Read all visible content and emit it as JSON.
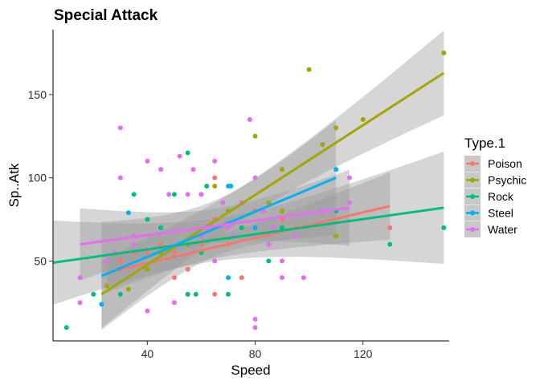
{
  "chart_data": {
    "type": "scatter",
    "title": "Special Attack",
    "xlabel": "Speed",
    "ylabel": "Sp..Atk",
    "xlim": [
      5,
      152
    ],
    "ylim": [
      2,
      189
    ],
    "xticks": [
      40,
      80,
      120
    ],
    "yticks": [
      50,
      100,
      150
    ],
    "grid": false,
    "legend": {
      "title": "Type.1",
      "position": "right"
    },
    "smoothing": "linear model with 95% confidence band",
    "series": [
      {
        "name": "Poison",
        "color": "#F8766D",
        "points": [
          [
            25,
            35
          ],
          [
            30,
            50
          ],
          [
            30,
            45
          ],
          [
            35,
            55
          ],
          [
            40,
            45
          ],
          [
            40,
            55
          ],
          [
            45,
            60
          ],
          [
            50,
            40
          ],
          [
            50,
            55
          ],
          [
            55,
            30
          ],
          [
            55,
            45
          ],
          [
            60,
            60
          ],
          [
            60,
            55
          ],
          [
            65,
            30
          ],
          [
            65,
            100
          ],
          [
            65,
            75
          ],
          [
            70,
            60
          ],
          [
            75,
            40
          ],
          [
            80,
            80
          ],
          [
            85,
            85
          ],
          [
            90,
            75
          ],
          [
            95,
            70
          ],
          [
            130,
            70
          ]
        ],
        "fit": {
          "x": [
            25,
            130
          ],
          "y": [
            43,
            83
          ]
        }
      },
      {
        "name": "Psychic",
        "color": "#A3A500",
        "points": [
          [
            25,
            35
          ],
          [
            33,
            33
          ],
          [
            40,
            45
          ],
          [
            45,
            55
          ],
          [
            45,
            70
          ],
          [
            55,
            60
          ],
          [
            60,
            90
          ],
          [
            65,
            95
          ],
          [
            70,
            80
          ],
          [
            75,
            85
          ],
          [
            80,
            125
          ],
          [
            90,
            105
          ],
          [
            85,
            85
          ],
          [
            90,
            80
          ],
          [
            100,
            165
          ],
          [
            105,
            120
          ],
          [
            110,
            130
          ],
          [
            110,
            65
          ],
          [
            120,
            135
          ],
          [
            150,
            175
          ]
        ],
        "fit": {
          "x": [
            23,
            150
          ],
          "y": [
            30,
            163
          ]
        }
      },
      {
        "name": "Rock",
        "color": "#00BF7D",
        "points": [
          [
            10,
            10
          ],
          [
            20,
            30
          ],
          [
            30,
            30
          ],
          [
            35,
            90
          ],
          [
            40,
            75
          ],
          [
            45,
            70
          ],
          [
            50,
            90
          ],
          [
            55,
            115
          ],
          [
            55,
            30
          ],
          [
            58,
            30
          ],
          [
            60,
            55
          ],
          [
            62,
            95
          ],
          [
            70,
            30
          ],
          [
            75,
            70
          ],
          [
            85,
            50
          ],
          [
            90,
            70
          ],
          [
            110,
            80
          ],
          [
            130,
            60
          ],
          [
            150,
            70
          ]
        ],
        "fit": {
          "x": [
            5,
            150
          ],
          "y": [
            49,
            82
          ]
        }
      },
      {
        "name": "Steel",
        "color": "#00B0F6",
        "points": [
          [
            23,
            24
          ],
          [
            33,
            79
          ],
          [
            60,
            65
          ],
          [
            70,
            95
          ],
          [
            71,
            95
          ],
          [
            70,
            40
          ],
          [
            80,
            70
          ],
          [
            110,
            105
          ]
        ],
        "fit": {
          "x": [
            23,
            110
          ],
          "y": [
            41,
            100
          ]
        }
      },
      {
        "name": "Water",
        "color": "#E76BF3",
        "points": [
          [
            15,
            40
          ],
          [
            15,
            25
          ],
          [
            25,
            50
          ],
          [
            28,
            55
          ],
          [
            30,
            130
          ],
          [
            30,
            100
          ],
          [
            35,
            65
          ],
          [
            35,
            60
          ],
          [
            40,
            110
          ],
          [
            40,
            20
          ],
          [
            45,
            105
          ],
          [
            48,
            90
          ],
          [
            50,
            25
          ],
          [
            52,
            113
          ],
          [
            55,
            90
          ],
          [
            57,
            105
          ],
          [
            60,
            65
          ],
          [
            60,
            90
          ],
          [
            62,
            70
          ],
          [
            65,
            110
          ],
          [
            65,
            50
          ],
          [
            68,
            85
          ],
          [
            70,
            70
          ],
          [
            72,
            65
          ],
          [
            75,
            85
          ],
          [
            78,
            135
          ],
          [
            80,
            15
          ],
          [
            80,
            10
          ],
          [
            80,
            100
          ],
          [
            83,
            80
          ],
          [
            85,
            60
          ],
          [
            87,
            70
          ],
          [
            90,
            40
          ],
          [
            90,
            50
          ],
          [
            95,
            65
          ],
          [
            98,
            40
          ],
          [
            105,
            80
          ],
          [
            115,
            100
          ],
          [
            115,
            85
          ]
        ],
        "fit": {
          "x": [
            15,
            115
          ],
          "y": [
            60,
            82
          ]
        }
      }
    ]
  }
}
